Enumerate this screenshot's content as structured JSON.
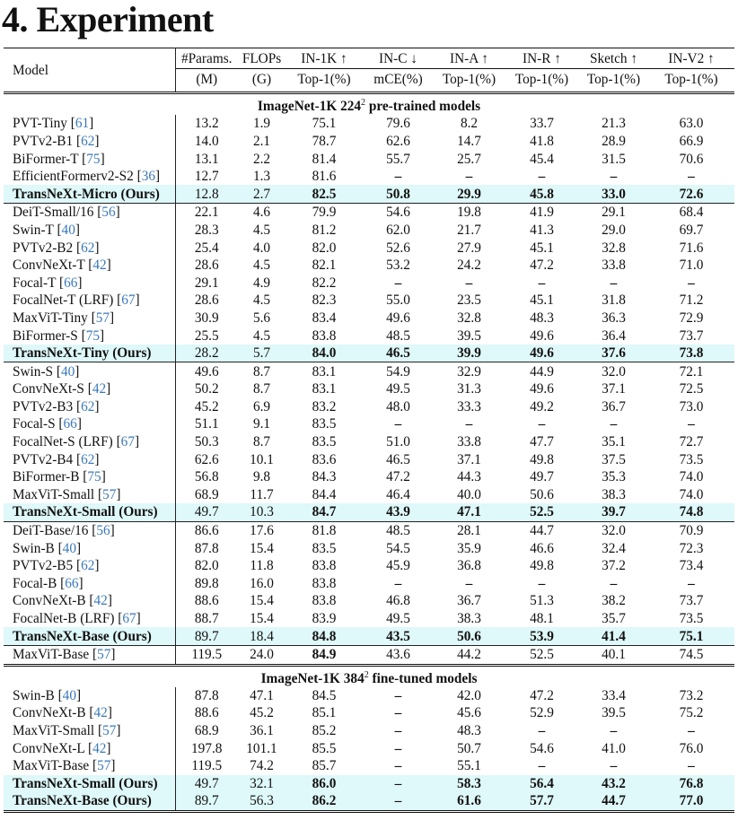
{
  "title": "4. Experiment",
  "header": {
    "row1": [
      "Model",
      "#Params.",
      "FLOPs",
      "IN-1K ↑",
      "IN-C ↓",
      "IN-A ↑",
      "IN-R ↑",
      "Sketch ↑",
      "IN-V2 ↑"
    ],
    "row2": [
      "(M)",
      "(G)",
      "Top-1(%)",
      "mCE(%)",
      "Top-1(%)",
      "Top-1(%)",
      "Top-1(%)",
      "Top-1(%)"
    ]
  },
  "sections": [
    {
      "title": "ImageNet-1K 224",
      "sup": "2",
      "title_suffix": " pre-trained models",
      "groups": [
        [
          {
            "name": "PVT-Tiny",
            "ref": "61",
            "values": [
              "13.2",
              "1.9",
              "75.1",
              "79.6",
              "8.2",
              "33.7",
              "21.3",
              "63.0"
            ]
          },
          {
            "name": "PVTv2-B1",
            "ref": "62",
            "values": [
              "14.0",
              "2.1",
              "78.7",
              "62.6",
              "14.7",
              "41.8",
              "28.9",
              "66.9"
            ]
          },
          {
            "name": "BiFormer-T",
            "ref": "75",
            "values": [
              "13.1",
              "2.2",
              "81.4",
              "55.7",
              "25.7",
              "45.4",
              "31.5",
              "70.6"
            ]
          },
          {
            "name": "EfficientFormerv2-S2",
            "ref": "36",
            "values": [
              "12.7",
              "1.3",
              "81.6",
              "–",
              "–",
              "–",
              "–",
              "–"
            ]
          },
          {
            "name": "TransNeXt-Micro (Ours)",
            "ours": true,
            "values": [
              "12.8",
              "2.7",
              "82.5",
              "50.8",
              "29.9",
              "45.8",
              "33.0",
              "72.6"
            ]
          }
        ],
        [
          {
            "name": "DeiT-Small/16",
            "ref": "56",
            "values": [
              "22.1",
              "4.6",
              "79.9",
              "54.6",
              "19.8",
              "41.9",
              "29.1",
              "68.4"
            ]
          },
          {
            "name": "Swin-T",
            "ref": "40",
            "values": [
              "28.3",
              "4.5",
              "81.2",
              "62.0",
              "21.7",
              "41.3",
              "29.0",
              "69.7"
            ]
          },
          {
            "name": "PVTv2-B2",
            "ref": "62",
            "values": [
              "25.4",
              "4.0",
              "82.0",
              "52.6",
              "27.9",
              "45.1",
              "32.8",
              "71.6"
            ]
          },
          {
            "name": "ConvNeXt-T",
            "ref": "42",
            "values": [
              "28.6",
              "4.5",
              "82.1",
              "53.2",
              "24.2",
              "47.2",
              "33.8",
              "71.0"
            ]
          },
          {
            "name": "Focal-T",
            "ref": "66",
            "values": [
              "29.1",
              "4.9",
              "82.2",
              "–",
              "–",
              "–",
              "–",
              "–"
            ]
          },
          {
            "name": "FocalNet-T (LRF)",
            "ref": "67",
            "values": [
              "28.6",
              "4.5",
              "82.3",
              "55.0",
              "23.5",
              "45.1",
              "31.8",
              "71.2"
            ]
          },
          {
            "name": "MaxViT-Tiny",
            "ref": "57",
            "values": [
              "30.9",
              "5.6",
              "83.4",
              "49.6",
              "32.8",
              "48.3",
              "36.3",
              "72.9"
            ]
          },
          {
            "name": "BiFormer-S",
            "ref": "75",
            "values": [
              "25.5",
              "4.5",
              "83.8",
              "48.5",
              "39.5",
              "49.6",
              "36.4",
              "73.7"
            ]
          },
          {
            "name": "TransNeXt-Tiny (Ours)",
            "ours": true,
            "values": [
              "28.2",
              "5.7",
              "84.0",
              "46.5",
              "39.9",
              "49.6",
              "37.6",
              "73.8"
            ]
          }
        ],
        [
          {
            "name": "Swin-S",
            "ref": "40",
            "values": [
              "49.6",
              "8.7",
              "83.1",
              "54.9",
              "32.9",
              "44.9",
              "32.0",
              "72.1"
            ]
          },
          {
            "name": "ConvNeXt-S",
            "ref": "42",
            "values": [
              "50.2",
              "8.7",
              "83.1",
              "49.5",
              "31.3",
              "49.6",
              "37.1",
              "72.5"
            ]
          },
          {
            "name": "PVTv2-B3",
            "ref": "62",
            "values": [
              "45.2",
              "6.9",
              "83.2",
              "48.0",
              "33.3",
              "49.2",
              "36.7",
              "73.0"
            ]
          },
          {
            "name": "Focal-S",
            "ref": "66",
            "values": [
              "51.1",
              "9.1",
              "83.5",
              "–",
              "–",
              "–",
              "–",
              "–"
            ]
          },
          {
            "name": "FocalNet-S (LRF)",
            "ref": "67",
            "values": [
              "50.3",
              "8.7",
              "83.5",
              "51.0",
              "33.8",
              "47.7",
              "35.1",
              "72.7"
            ]
          },
          {
            "name": "PVTv2-B4",
            "ref": "62",
            "values": [
              "62.6",
              "10.1",
              "83.6",
              "46.5",
              "37.1",
              "49.8",
              "37.5",
              "73.5"
            ]
          },
          {
            "name": "BiFormer-B",
            "ref": "75",
            "values": [
              "56.8",
              "9.8",
              "84.3",
              "47.2",
              "44.3",
              "49.7",
              "35.3",
              "74.0"
            ]
          },
          {
            "name": "MaxViT-Small",
            "ref": "57",
            "values": [
              "68.9",
              "11.7",
              "84.4",
              "46.4",
              "40.0",
              "50.6",
              "38.3",
              "74.0"
            ]
          },
          {
            "name": "TransNeXt-Small (Ours)",
            "ours": true,
            "values": [
              "49.7",
              "10.3",
              "84.7",
              "43.9",
              "47.1",
              "52.5",
              "39.7",
              "74.8"
            ]
          }
        ],
        [
          {
            "name": "DeiT-Base/16",
            "ref": "56",
            "values": [
              "86.6",
              "17.6",
              "81.8",
              "48.5",
              "28.1",
              "44.7",
              "32.0",
              "70.9"
            ]
          },
          {
            "name": "Swin-B",
            "ref": "40",
            "values": [
              "87.8",
              "15.4",
              "83.5",
              "54.5",
              "35.9",
              "46.6",
              "32.4",
              "72.3"
            ]
          },
          {
            "name": "PVTv2-B5",
            "ref": "62",
            "values": [
              "82.0",
              "11.8",
              "83.8",
              "45.9",
              "36.8",
              "49.8",
              "37.2",
              "73.4"
            ]
          },
          {
            "name": "Focal-B",
            "ref": "66",
            "values": [
              "89.8",
              "16.0",
              "83.8",
              "–",
              "–",
              "–",
              "–",
              "–"
            ]
          },
          {
            "name": "ConvNeXt-B",
            "ref": "42",
            "values": [
              "88.6",
              "15.4",
              "83.8",
              "46.8",
              "36.7",
              "51.3",
              "38.2",
              "73.7"
            ]
          },
          {
            "name": "FocalNet-B (LRF)",
            "ref": "67",
            "values": [
              "88.7",
              "15.4",
              "83.9",
              "49.5",
              "38.3",
              "48.1",
              "35.7",
              "73.5"
            ]
          },
          {
            "name": "TransNeXt-Base (Ours)",
            "ours": true,
            "values": [
              "89.7",
              "18.4",
              "84.8",
              "43.5",
              "50.6",
              "53.9",
              "41.4",
              "75.1"
            ]
          }
        ],
        [
          {
            "name": "MaxViT-Base",
            "ref": "57",
            "bold_cols": [
              2
            ],
            "values": [
              "119.5",
              "24.0",
              "84.9",
              "43.6",
              "44.2",
              "52.5",
              "40.1",
              "74.5"
            ]
          }
        ]
      ]
    },
    {
      "title": "ImageNet-1K 384",
      "sup": "2",
      "title_suffix": " fine-tuned models",
      "groups": [
        [
          {
            "name": "Swin-B",
            "ref": "40",
            "values": [
              "87.8",
              "47.1",
              "84.5",
              "–",
              "42.0",
              "47.2",
              "33.4",
              "73.2"
            ]
          },
          {
            "name": "ConvNeXt-B",
            "ref": "42",
            "values": [
              "88.6",
              "45.2",
              "85.1",
              "–",
              "45.6",
              "52.9",
              "39.5",
              "75.2"
            ]
          },
          {
            "name": "MaxViT-Small",
            "ref": "57",
            "values": [
              "68.9",
              "36.1",
              "85.2",
              "–",
              "48.3",
              "–",
              "–",
              "–"
            ]
          },
          {
            "name": "ConvNeXt-L",
            "ref": "42",
            "values": [
              "197.8",
              "101.1",
              "85.5",
              "–",
              "50.7",
              "54.6",
              "41.0",
              "76.0"
            ]
          },
          {
            "name": "MaxViT-Base",
            "ref": "57",
            "values": [
              "119.5",
              "74.2",
              "85.7",
              "–",
              "55.1",
              "–",
              "–",
              "–"
            ]
          },
          {
            "name": "TransNeXt-Small (Ours)",
            "ours": true,
            "values": [
              "49.7",
              "32.1",
              "86.0",
              "–",
              "58.3",
              "56.4",
              "43.2",
              "76.8"
            ]
          },
          {
            "name": "TransNeXt-Base (Ours)",
            "ours": true,
            "values": [
              "89.7",
              "56.3",
              "86.2",
              "–",
              "61.6",
              "57.7",
              "44.7",
              "77.0"
            ]
          }
        ]
      ]
    }
  ],
  "colors": {
    "highlight": "#dff8f9",
    "ref": "#3a78b8"
  }
}
